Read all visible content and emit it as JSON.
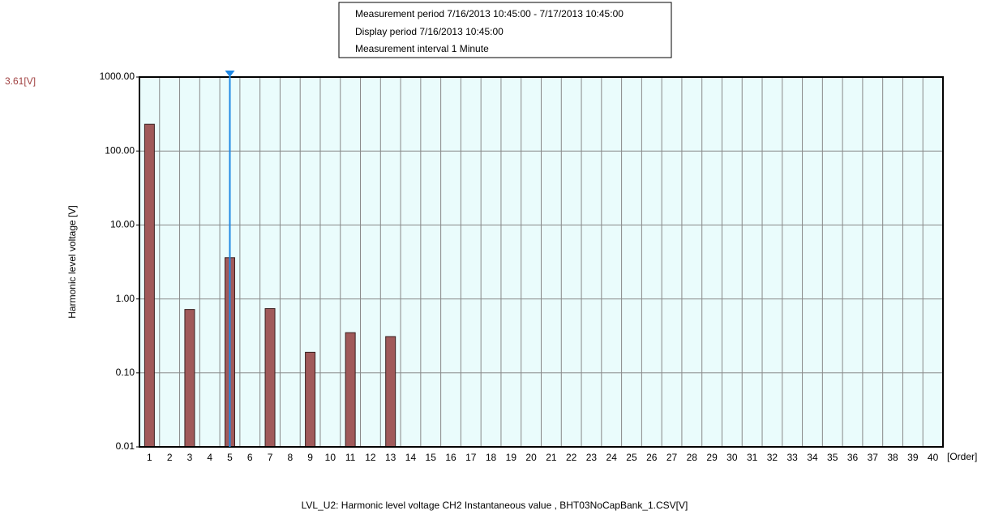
{
  "chart_data": {
    "type": "bar",
    "info": [
      "Measurement period  7/16/2013 10:45:00 - 7/17/2013 10:45:00",
      "Display period  7/16/2013 10:45:00",
      "Measurement interval  1 Minute"
    ],
    "y_label": "Harmonic level voltage [V]",
    "x_label": "[Order]",
    "caption": "LVL_U2: Harmonic level voltage CH2 Instantaneous value  , BHT03NoCapBank_1.CSV[V]",
    "cursor_category": "5",
    "cursor_label": "3.61[V]",
    "categories": [
      "1",
      "2",
      "3",
      "4",
      "5",
      "6",
      "7",
      "8",
      "9",
      "10",
      "11",
      "12",
      "13",
      "14",
      "15",
      "16",
      "17",
      "18",
      "19",
      "20",
      "21",
      "22",
      "23",
      "24",
      "25",
      "26",
      "27",
      "28",
      "29",
      "30",
      "31",
      "32",
      "33",
      "34",
      "35",
      "36",
      "37",
      "38",
      "39",
      "40"
    ],
    "values": [
      230,
      null,
      0.72,
      null,
      3.61,
      null,
      0.74,
      null,
      0.19,
      null,
      0.35,
      null,
      0.31,
      null,
      null,
      null,
      null,
      null,
      null,
      null,
      null,
      null,
      null,
      null,
      null,
      null,
      null,
      null,
      null,
      null,
      null,
      null,
      null,
      null,
      null,
      null,
      null,
      null,
      null,
      null
    ],
    "color": "#a05a5a",
    "log_scale": true,
    "grid": true,
    "ylim": [
      0.01,
      1000
    ],
    "yticks": [
      {
        "value": 1000,
        "label": "1000.00"
      },
      {
        "value": 100,
        "label": "100.00"
      },
      {
        "value": 10,
        "label": "10.00"
      },
      {
        "value": 1,
        "label": "1.00"
      },
      {
        "value": 0.1,
        "label": "0.10"
      },
      {
        "value": 0.01,
        "label": "0.01"
      }
    ]
  }
}
